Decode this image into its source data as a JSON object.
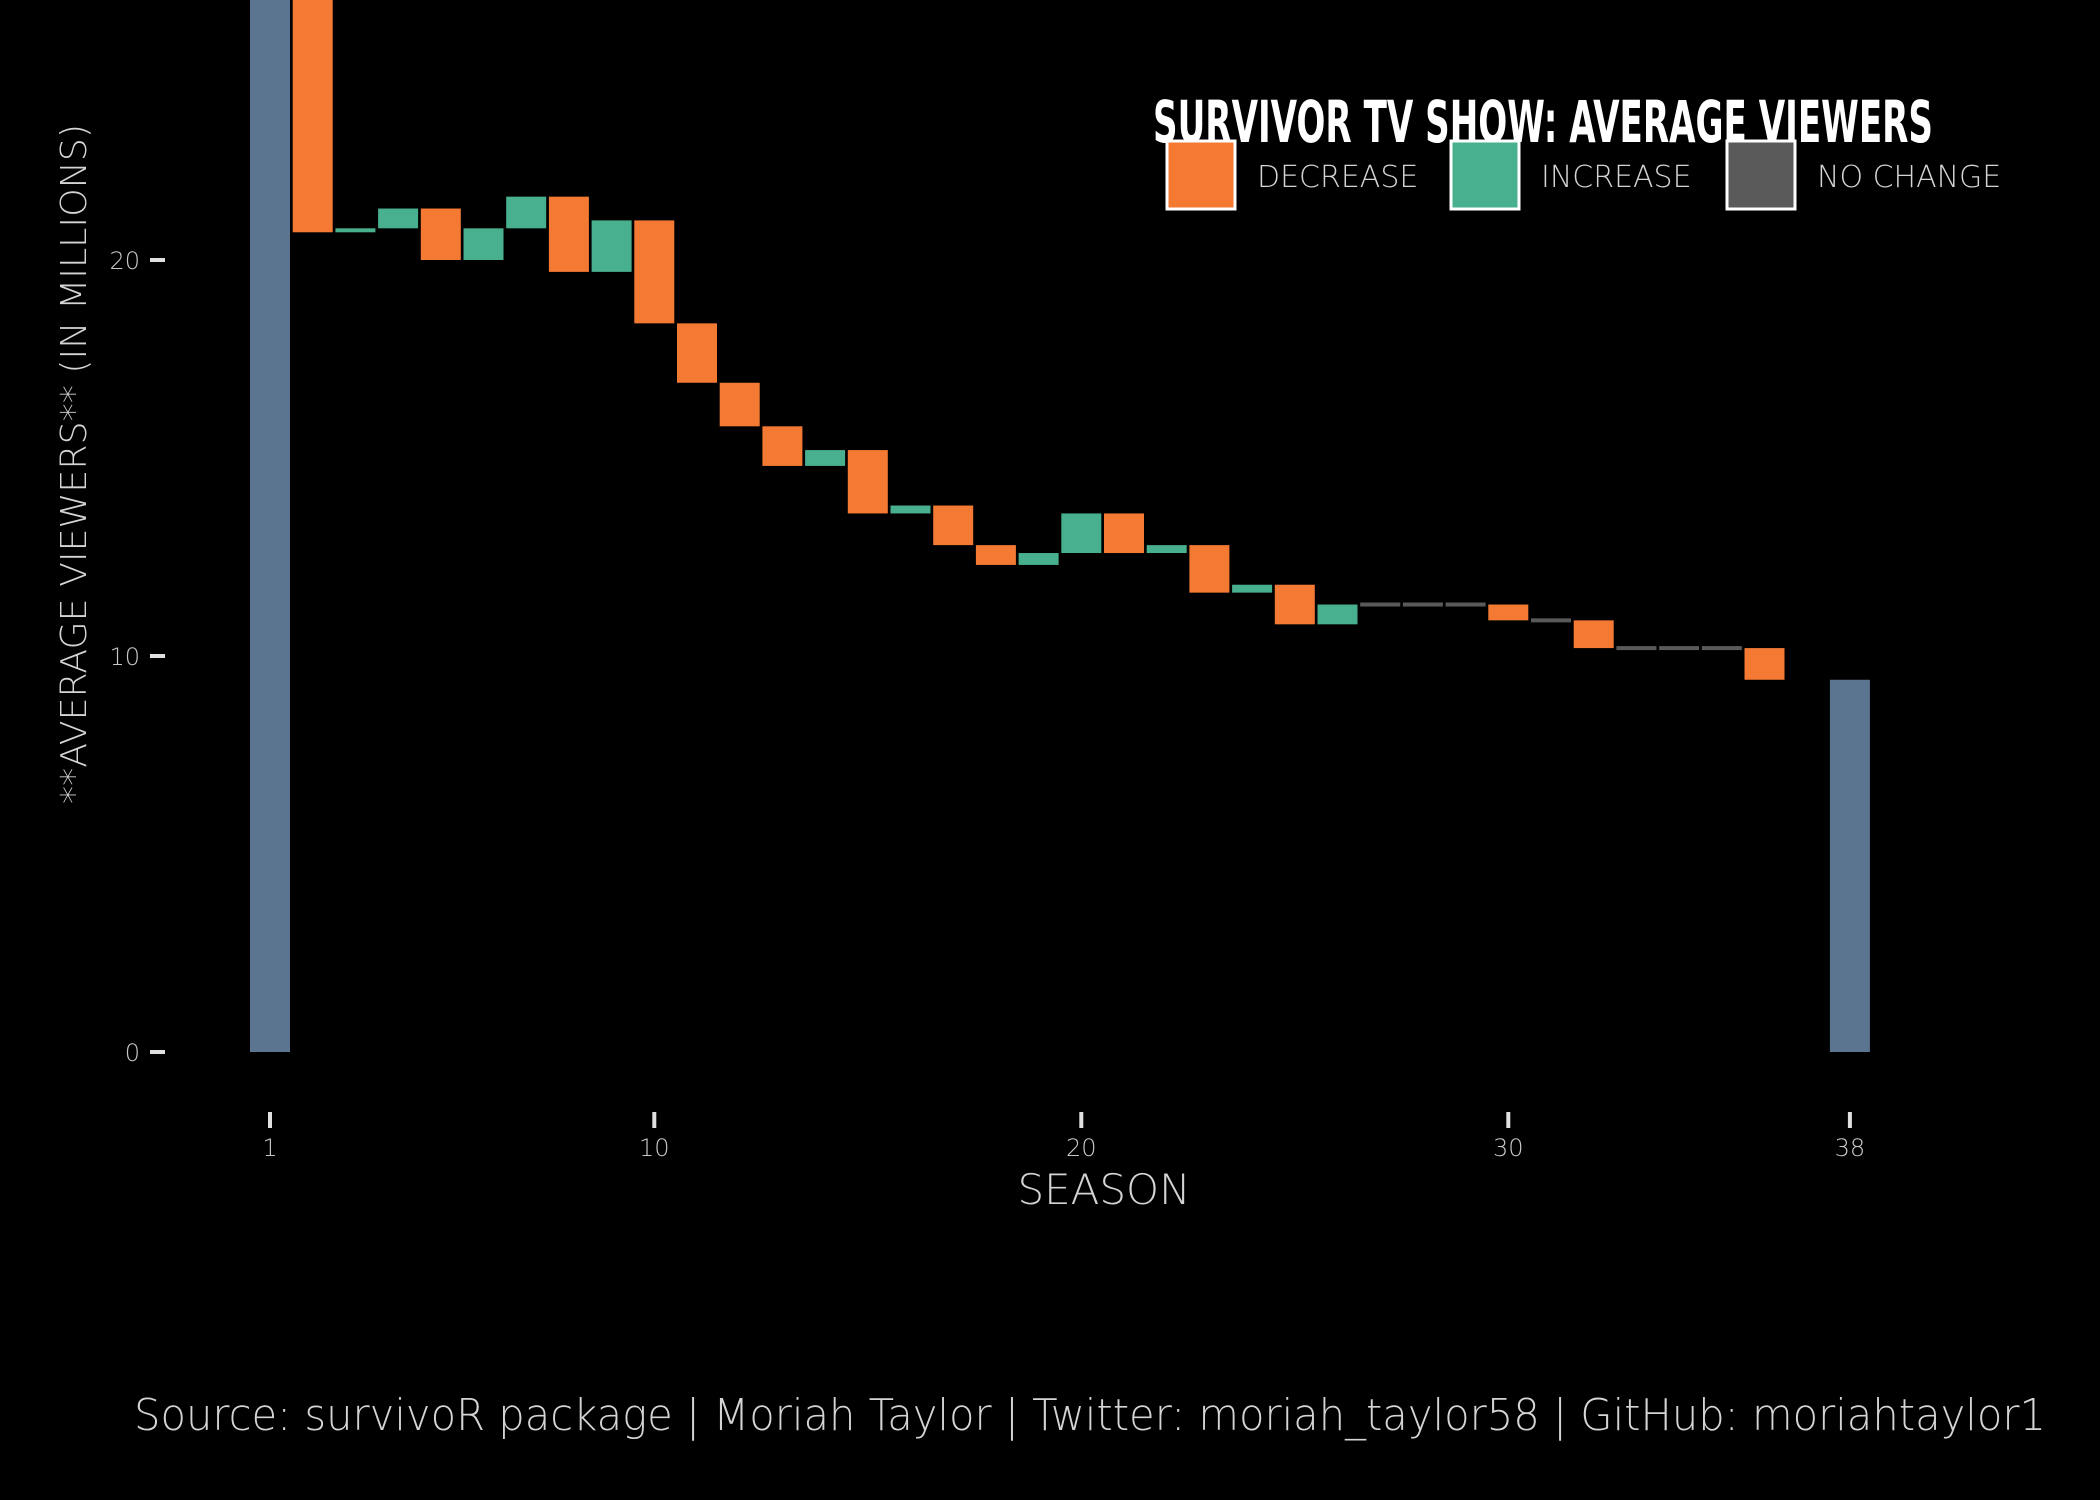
{
  "chart_data": {
    "type": "waterfall",
    "title": "SURVIVOR TV SHOW: AVERAGE VIEWERS",
    "xlabel": "SEASON",
    "ylabel": "**AVERAGE VIEWERS** (IN MILLIONS)",
    "caption": "Source: survivoR package | Moriah Taylor | Twitter: moriah_taylor58 | GitHub: moriahtaylor1",
    "x_ticks": [
      1,
      10,
      20,
      30,
      38
    ],
    "y_ticks": [
      0,
      10,
      20
    ],
    "ylim": [
      0,
      26.5
    ],
    "legend": {
      "position": "top-right",
      "entries": [
        {
          "label": "DECREASE",
          "color": "#F47A34"
        },
        {
          "label": "INCREASE",
          "color": "#48AF8F"
        },
        {
          "label": "NO CHANGE",
          "color": "#5A5A5A"
        }
      ]
    },
    "colors": {
      "total": "#5B7590",
      "decrease": "#F47A34",
      "increase": "#48AF8F",
      "no_change": "#5A5A5A",
      "background": "#000000"
    },
    "totals": [
      {
        "season": 1,
        "value": 28.3
      },
      {
        "season": 38,
        "value": 9.4
      }
    ],
    "steps": [
      {
        "season": 2,
        "start": 28.3,
        "end": 20.7
      },
      {
        "season": 3,
        "start": 20.7,
        "end": 20.8
      },
      {
        "season": 4,
        "start": 20.8,
        "end": 21.3
      },
      {
        "season": 5,
        "start": 21.3,
        "end": 20.0
      },
      {
        "season": 6,
        "start": 20.0,
        "end": 20.8
      },
      {
        "season": 7,
        "start": 20.8,
        "end": 21.6
      },
      {
        "season": 8,
        "start": 21.6,
        "end": 19.7
      },
      {
        "season": 9,
        "start": 19.7,
        "end": 21.0
      },
      {
        "season": 10,
        "start": 21.0,
        "end": 18.4
      },
      {
        "season": 11,
        "start": 18.4,
        "end": 16.9
      },
      {
        "season": 12,
        "start": 16.9,
        "end": 15.8
      },
      {
        "season": 13,
        "start": 15.8,
        "end": 14.8
      },
      {
        "season": 14,
        "start": 14.8,
        "end": 15.2
      },
      {
        "season": 15,
        "start": 15.2,
        "end": 13.6
      },
      {
        "season": 16,
        "start": 13.6,
        "end": 13.8
      },
      {
        "season": 17,
        "start": 13.8,
        "end": 12.8
      },
      {
        "season": 18,
        "start": 12.8,
        "end": 12.3
      },
      {
        "season": 19,
        "start": 12.3,
        "end": 12.6
      },
      {
        "season": 20,
        "start": 12.6,
        "end": 13.6
      },
      {
        "season": 21,
        "start": 13.6,
        "end": 12.6
      },
      {
        "season": 22,
        "start": 12.6,
        "end": 12.8
      },
      {
        "season": 23,
        "start": 12.8,
        "end": 11.6
      },
      {
        "season": 24,
        "start": 11.6,
        "end": 11.8
      },
      {
        "season": 25,
        "start": 11.8,
        "end": 10.8
      },
      {
        "season": 26,
        "start": 10.8,
        "end": 11.3
      },
      {
        "season": 27,
        "start": 11.3,
        "end": 11.3
      },
      {
        "season": 28,
        "start": 11.3,
        "end": 11.3
      },
      {
        "season": 29,
        "start": 11.3,
        "end": 11.3
      },
      {
        "season": 30,
        "start": 11.3,
        "end": 10.9
      },
      {
        "season": 31,
        "start": 10.9,
        "end": 10.9
      },
      {
        "season": 32,
        "start": 10.9,
        "end": 10.2
      },
      {
        "season": 33,
        "start": 10.2,
        "end": 10.2
      },
      {
        "season": 34,
        "start": 10.2,
        "end": 10.2
      },
      {
        "season": 35,
        "start": 10.2,
        "end": 10.2
      },
      {
        "season": 36,
        "start": 10.2,
        "end": 9.4
      }
    ]
  }
}
